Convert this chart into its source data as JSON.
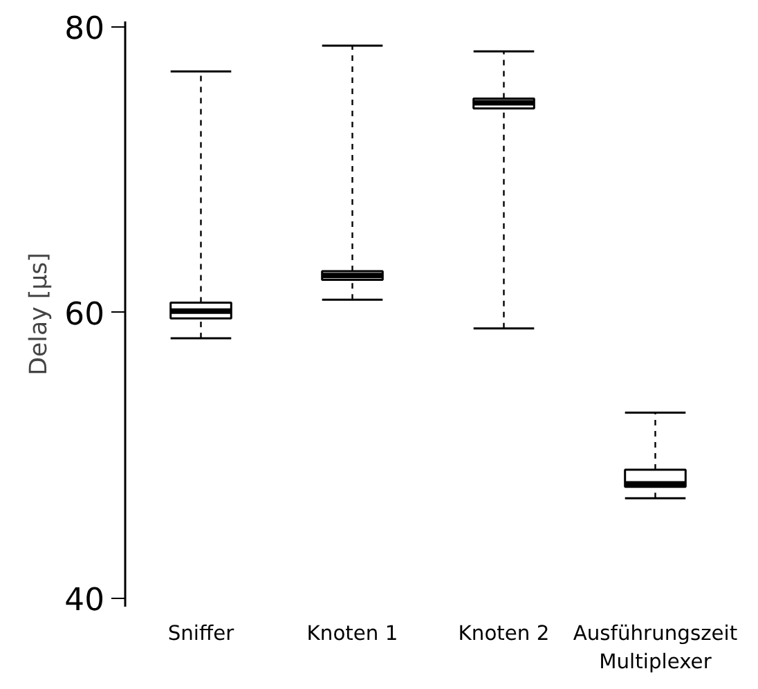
{
  "chart_data": {
    "type": "box",
    "ylabel": "Delay [µs]",
    "categories": [
      "Sniffer",
      "Knoten 1",
      "Knoten 2",
      "Ausführungszeit\nMultiplexer"
    ],
    "boxes": [
      {
        "low": 58.2,
        "q1": 59.6,
        "median": 60.1,
        "q3": 60.7,
        "high": 76.9
      },
      {
        "low": 60.9,
        "q1": 62.3,
        "median": 62.6,
        "q3": 62.9,
        "high": 78.7
      },
      {
        "low": 58.9,
        "q1": 74.3,
        "median": 74.7,
        "q3": 75.0,
        "high": 78.3
      },
      {
        "low": 47.0,
        "q1": 47.8,
        "median": 48.0,
        "q3": 49.0,
        "high": 53.0
      }
    ],
    "color": "#ffffff",
    "ylim": [
      39.4,
      80.4
    ],
    "yticks": [
      40,
      60,
      80
    ],
    "grid": false
  }
}
